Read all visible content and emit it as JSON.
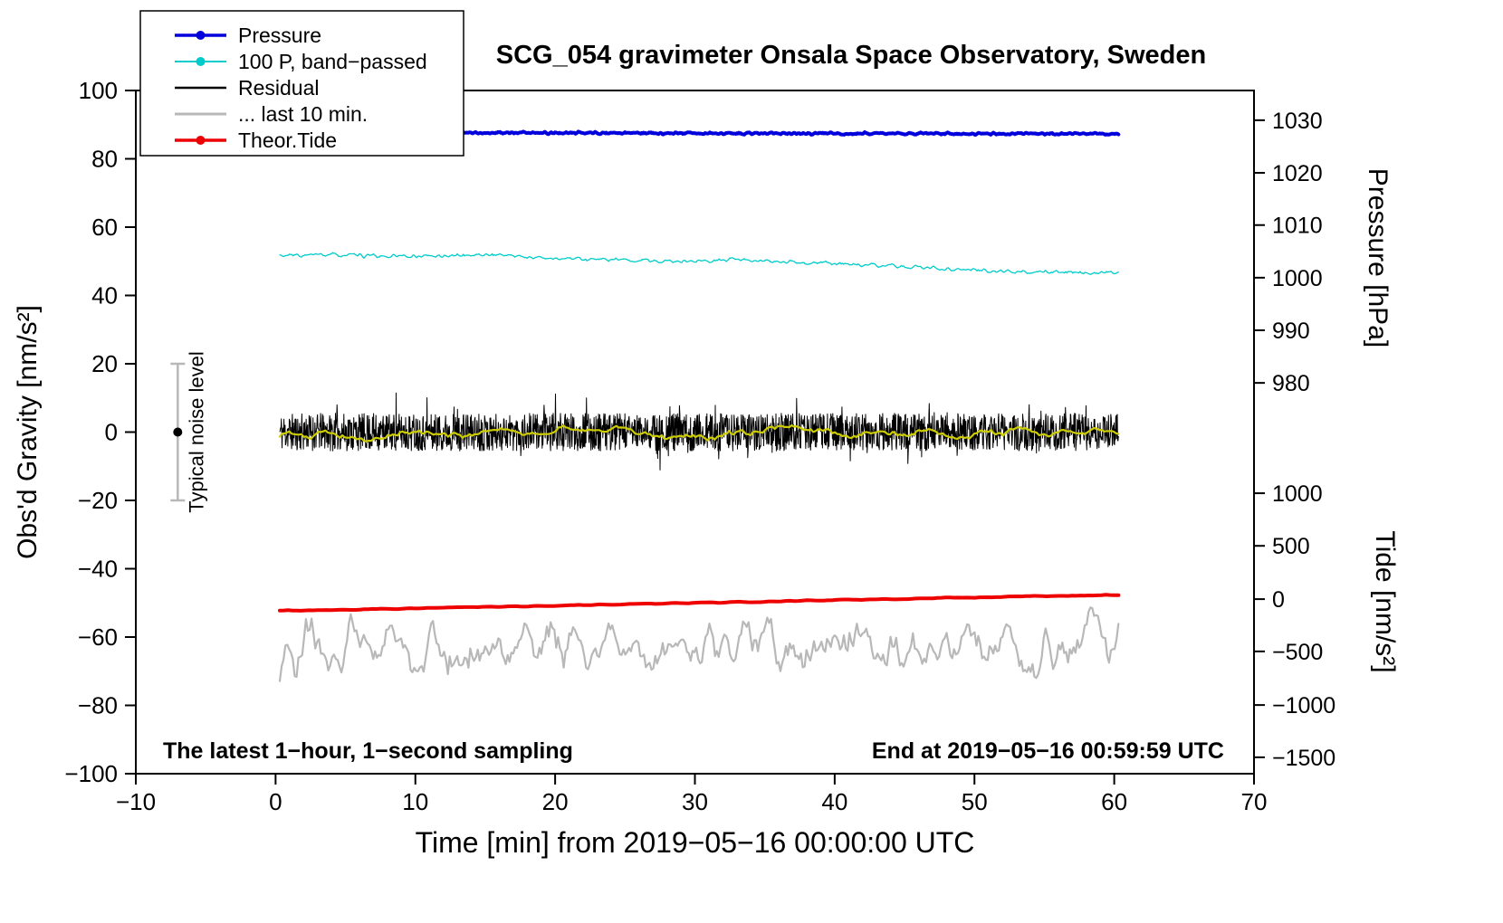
{
  "chart_data": {
    "type": "line",
    "title": "SCG_054 gravimeter Onsala Space Observatory, Sweden",
    "xlabel": "Time [min] from 2019−05−16 00:00:00 UTC",
    "ylabel_left": "Obs'd Gravity [nm/s²]",
    "ylabel_pressure": "Pressure [hPa]",
    "ylabel_tide": "Tide [nm/s²]",
    "annotation_left": "The latest 1−hour, 1−second sampling",
    "annotation_right": "End at 2019−05−16 00:59:59 UTC",
    "noise_bar_label": "Typical noise level",
    "xlim": [
      -10,
      70
    ],
    "ylim_left": [
      -100,
      100
    ],
    "grid": false,
    "legend_position": "top-left",
    "x_ticks": {
      "values": [
        -10,
        0,
        10,
        20,
        30,
        40,
        50,
        60,
        70
      ],
      "labels": [
        "−10",
        "0",
        "10",
        "20",
        "30",
        "40",
        "50",
        "60",
        "70"
      ]
    },
    "left_ticks": {
      "values": [
        -100,
        -80,
        -60,
        -40,
        -20,
        0,
        20,
        40,
        60,
        80,
        100
      ],
      "labels": [
        "−100",
        "−80",
        "−60",
        "−40",
        "−20",
        "0",
        "20",
        "40",
        "60",
        "80",
        "100"
      ]
    },
    "pressure_ticks": {
      "labels": [
        "1030",
        "1020",
        "1010",
        "1000",
        "990",
        "980"
      ],
      "left_positions": [
        91.3,
        75.9,
        60.6,
        45.2,
        29.8,
        14.4
      ]
    },
    "tide_ticks": {
      "labels": [
        "1000",
        "500",
        "0",
        "−500",
        "−1000",
        "−1500"
      ],
      "left_positions": [
        -17.9,
        -33.3,
        -48.9,
        -64.2,
        -79.9,
        -95.2
      ]
    },
    "noise_bar": {
      "x": -7,
      "y_center": 0,
      "half_range": 20,
      "bar_color": "#b8b8b8",
      "dot_color": "#000000"
    },
    "legend": [
      {
        "label": "Pressure",
        "color": "#0000dd",
        "dot": true,
        "lw": 3.5
      },
      {
        "label": "100 P, band−passed",
        "color": "#00cccc",
        "dot": true,
        "lw": 2
      },
      {
        "label": "Residual",
        "color": "#000000",
        "dot": false,
        "lw": 2.5
      },
      {
        "label": "... last 10 min.",
        "color": "#b8b8b8",
        "dot": false,
        "lw": 3
      },
      {
        "label": "Theor.Tide",
        "color": "#ee0000",
        "dot": true,
        "lw": 3.5
      }
    ],
    "series": [
      {
        "name": "residual",
        "color": "#000000",
        "width": 1,
        "x_start": 0.3,
        "x_end": 60.3,
        "points": 2200,
        "keypoints": [
          [
            0.3,
            0
          ],
          [
            60.3,
            0
          ]
        ],
        "noise": 5.5,
        "smooth": 0,
        "spike_prob": 0.06,
        "spike_amp": 7,
        "seed": 11
      },
      {
        "name": "residual-mean",
        "color": "#cccc00",
        "width": 2.2,
        "x_start": 0.3,
        "x_end": 60.3,
        "points": 350,
        "keypoints": [
          [
            0.3,
            0.3
          ],
          [
            10,
            0
          ],
          [
            20,
            0.2
          ],
          [
            30,
            -0.2
          ],
          [
            40,
            0.1
          ],
          [
            50,
            -0.4
          ],
          [
            60.3,
            -0.5
          ]
        ],
        "noise": 1.6,
        "smooth": 4,
        "spike_prob": 0,
        "spike_amp": 0,
        "seed": 22
      },
      {
        "name": "band-passed",
        "color": "#00cccc",
        "width": 1.3,
        "x_start": 0.3,
        "x_end": 60.3,
        "points": 700,
        "keypoints": [
          [
            0.3,
            51.6
          ],
          [
            4,
            51.9
          ],
          [
            8,
            51.4
          ],
          [
            12,
            51.6
          ],
          [
            16,
            52.0
          ],
          [
            18,
            51.2
          ],
          [
            22,
            50.6
          ],
          [
            26,
            50.2
          ],
          [
            30,
            50.0
          ],
          [
            33,
            50.4
          ],
          [
            36,
            49.7
          ],
          [
            40,
            49.4
          ],
          [
            42,
            48.9
          ],
          [
            45,
            48.4
          ],
          [
            48,
            47.8
          ],
          [
            51,
            47.3
          ],
          [
            54,
            46.9
          ],
          [
            57,
            46.6
          ],
          [
            60.3,
            46.8
          ]
        ],
        "noise": 0.45,
        "smooth": 1,
        "spike_prob": 0,
        "spike_amp": 0,
        "seed": 33
      },
      {
        "name": "pressure",
        "color": "#0000dd",
        "width": 4,
        "x_start": 0.3,
        "x_end": 60.3,
        "points": 900,
        "keypoints": [
          [
            0.3,
            87.7
          ],
          [
            15,
            87.6
          ],
          [
            30,
            87.5
          ],
          [
            45,
            87.4
          ],
          [
            60.3,
            87.3
          ]
        ],
        "noise": 0.25,
        "smooth": 1,
        "spike_prob": 0,
        "spike_amp": 0,
        "seed": 44
      },
      {
        "name": "theor-tide",
        "color": "#ee0000",
        "width": 4,
        "x_start": 0.3,
        "x_end": 60.3,
        "points": 200,
        "keypoints": [
          [
            0.3,
            -52.3
          ],
          [
            20,
            -50.8
          ],
          [
            40,
            -49.2
          ],
          [
            60.3,
            -47.6
          ]
        ],
        "noise": 0.12,
        "smooth": 1,
        "spike_prob": 0,
        "spike_amp": 0,
        "seed": 55
      },
      {
        "name": "last-10-min",
        "color": "#b8b8b8",
        "width": 2.2,
        "x_start": 0.3,
        "x_end": 60.3,
        "points": 450,
        "keypoints": [
          [
            0.3,
            -62
          ],
          [
            60.3,
            -62
          ]
        ],
        "noise": 6.5,
        "smooth": 2,
        "spike_prob": 0,
        "spike_amp": 0,
        "seed": 66
      }
    ]
  }
}
